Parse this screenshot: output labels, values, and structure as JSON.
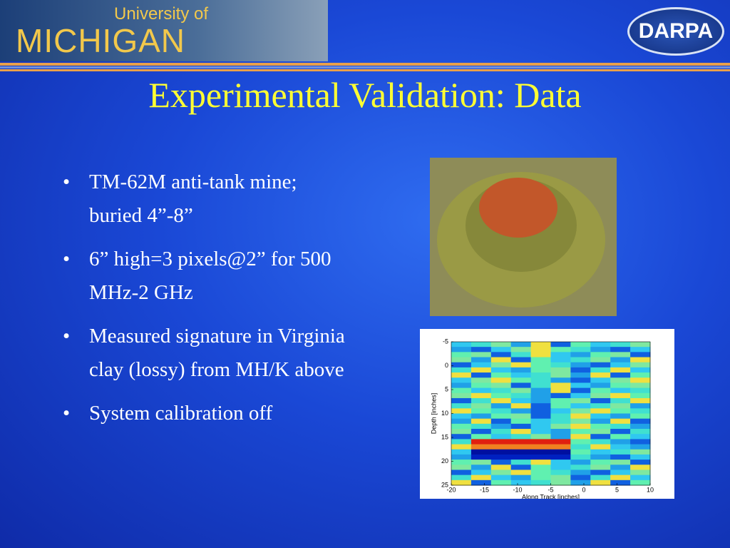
{
  "header": {
    "university_of": "University of",
    "michigan": "MICHIGAN",
    "darpa": "DARPA"
  },
  "title": "Experimental Validation: Data",
  "bullets": [
    "TM-62M anti-tank mine; buried 4”-8”",
    "6” high=3 pixels@2” for 500 MHz-2 GHz",
    "Measured signature in Virginia clay (lossy) from MH/K above",
    "System calibration off"
  ],
  "figure": {
    "y_label": "Depth [inches]",
    "x_label": "Along Track [inches]",
    "ylim": [
      -5,
      25
    ],
    "yticks": [
      -5,
      0,
      5,
      10,
      15,
      20,
      25
    ],
    "xlim": [
      -20,
      10
    ],
    "xticks": [
      -20,
      -15,
      -10,
      -5,
      0,
      5,
      10
    ]
  }
}
